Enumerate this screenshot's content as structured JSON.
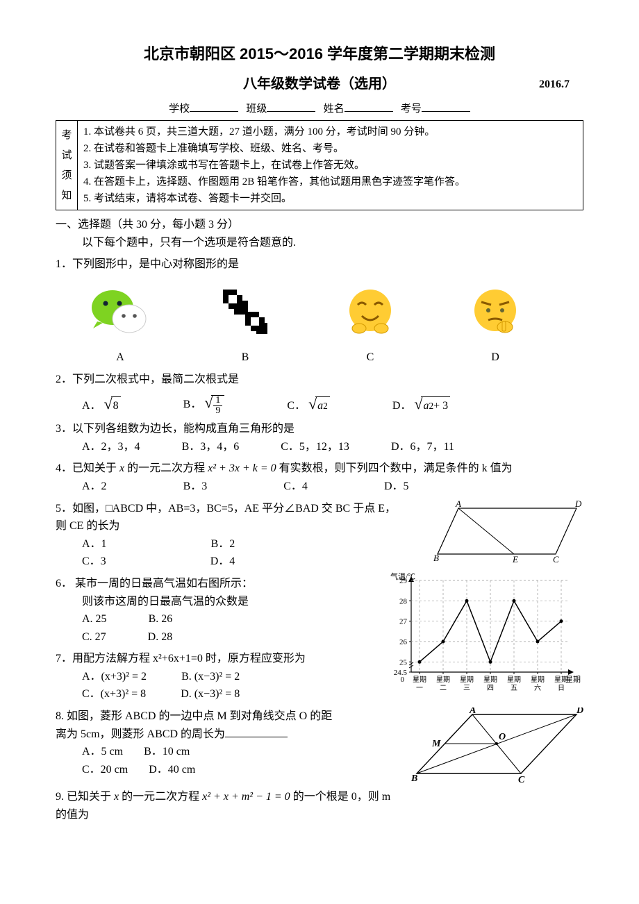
{
  "title": "北京市朝阳区 2015～2016 学年度第二学期期末检测",
  "subtitle": "八年级数学试卷（选用）",
  "date": "2016.7",
  "blanks": {
    "school": "学校",
    "class": "班级",
    "name": "姓名",
    "id": "考号"
  },
  "notice_label": [
    "考",
    "试",
    "须",
    "知"
  ],
  "notices": [
    "1. 本试卷共 6 页，共三道大题，27 道小题，满分 100 分，考试时间 90 分钟。",
    "2. 在试卷和答题卡上准确填写学校、班级、姓名、考号。",
    "3. 试题答案一律填涂或书写在答题卡上，在试卷上作答无效。",
    "4. 在答题卡上，选择题、作图题用 2B 铅笔作答，其他试题用黑色字迹签字笔作答。",
    "5. 考试结束，请将本试卷、答题卡一并交回。"
  ],
  "section1": {
    "header": "一、选择题（共 30 分，每小题 3 分）",
    "sub": "以下每个题中，只有一个选项是符合题意的."
  },
  "q1": {
    "text": "1．下列图形中，是中心对称图形的是",
    "labels": [
      "A",
      "B",
      "C",
      "D"
    ]
  },
  "q2": {
    "text": "2．下列二次根式中，最简二次根式是",
    "A": "A．",
    "B": "B．",
    "C": "C．",
    "D": "D．",
    "sqA": "8",
    "sqB_n": "1",
    "sqB_d": "9",
    "sqC": "a",
    "sqD": "a",
    "sqD_tail": " + 3"
  },
  "q3": {
    "text": "3．以下列各组数为边长，能构成直角三角形的是",
    "A": "A．2，3，4",
    "B": "B．3，4，6",
    "C": "C．5，12，13",
    "D": "D．6，7，11"
  },
  "q4": {
    "text_pre": "4．已知关于 ",
    "var": "x",
    "text_mid": " 的一元二次方程 ",
    "eq": "x² + 3x + k = 0",
    "text_post": " 有实数根，则下列四个数中，满足条件的 k 值为",
    "A": "A．2",
    "B": "B．3",
    "C": "C．4",
    "D": "D．5"
  },
  "q5": {
    "text": "5．如图，□ABCD 中，AB=3，BC=5，AE 平分∠BAD 交 BC 于点 E，",
    "text2": "则 CE 的长为",
    "A": "A．1",
    "B": "B．2",
    "C": "C．3",
    "D": "D．4",
    "fig_labels": {
      "A": "A",
      "B": "B",
      "C": "C",
      "D": "D",
      "E": "E"
    }
  },
  "q6": {
    "text": "6． 某市一周的日最高气温如右图所示：",
    "text2": "则该市这周的日最高气温的众数是",
    "A": "A. 25",
    "B": "B. 26",
    "C": "C. 27",
    "D": "D. 28",
    "chart": {
      "ylabel": "气温/℃",
      "xlabel": "星期",
      "yticks": [
        "24.5",
        "25",
        "26",
        "27",
        "28",
        "29"
      ],
      "xticks": [
        "星期一",
        "星期二",
        "星期三",
        "星期四",
        "星期五",
        "星期六",
        "星期日"
      ],
      "values": [
        25,
        26,
        28,
        25,
        28,
        26,
        27
      ],
      "line_color": "#000000",
      "grid_color": "#999999",
      "bg": "#ffffff"
    }
  },
  "q7": {
    "text": "7．用配方法解方程 x²+6x+1=0 时，原方程应变形为",
    "A": "A．(x+3)² = 2",
    "B": "B. (x−3)² = 2",
    "C": "C．(x+3)² = 8",
    "D": "D. (x−3)² = 8"
  },
  "q8": {
    "text": "8. 如图，菱形 ABCD 的一边中点 M 到对角线交点 O 的距",
    "text2": "离为 5cm，则菱形 ABCD 的周长为",
    "A": "A．5 cm",
    "B": "B．10 cm",
    "C": "C．20 cm",
    "D": "D．40 cm",
    "fig_labels": {
      "A": "A",
      "B": "B",
      "C": "C",
      "D": "D",
      "M": "M",
      "O": "O"
    }
  },
  "q9": {
    "text_pre": "9.  已知关于 ",
    "var": "x",
    "text_mid": " 的一元二次方程 ",
    "eq": "x² + x + m² − 1 = 0",
    "text_post": " 的一个根是 0，则 m",
    "text2": "的值为"
  }
}
